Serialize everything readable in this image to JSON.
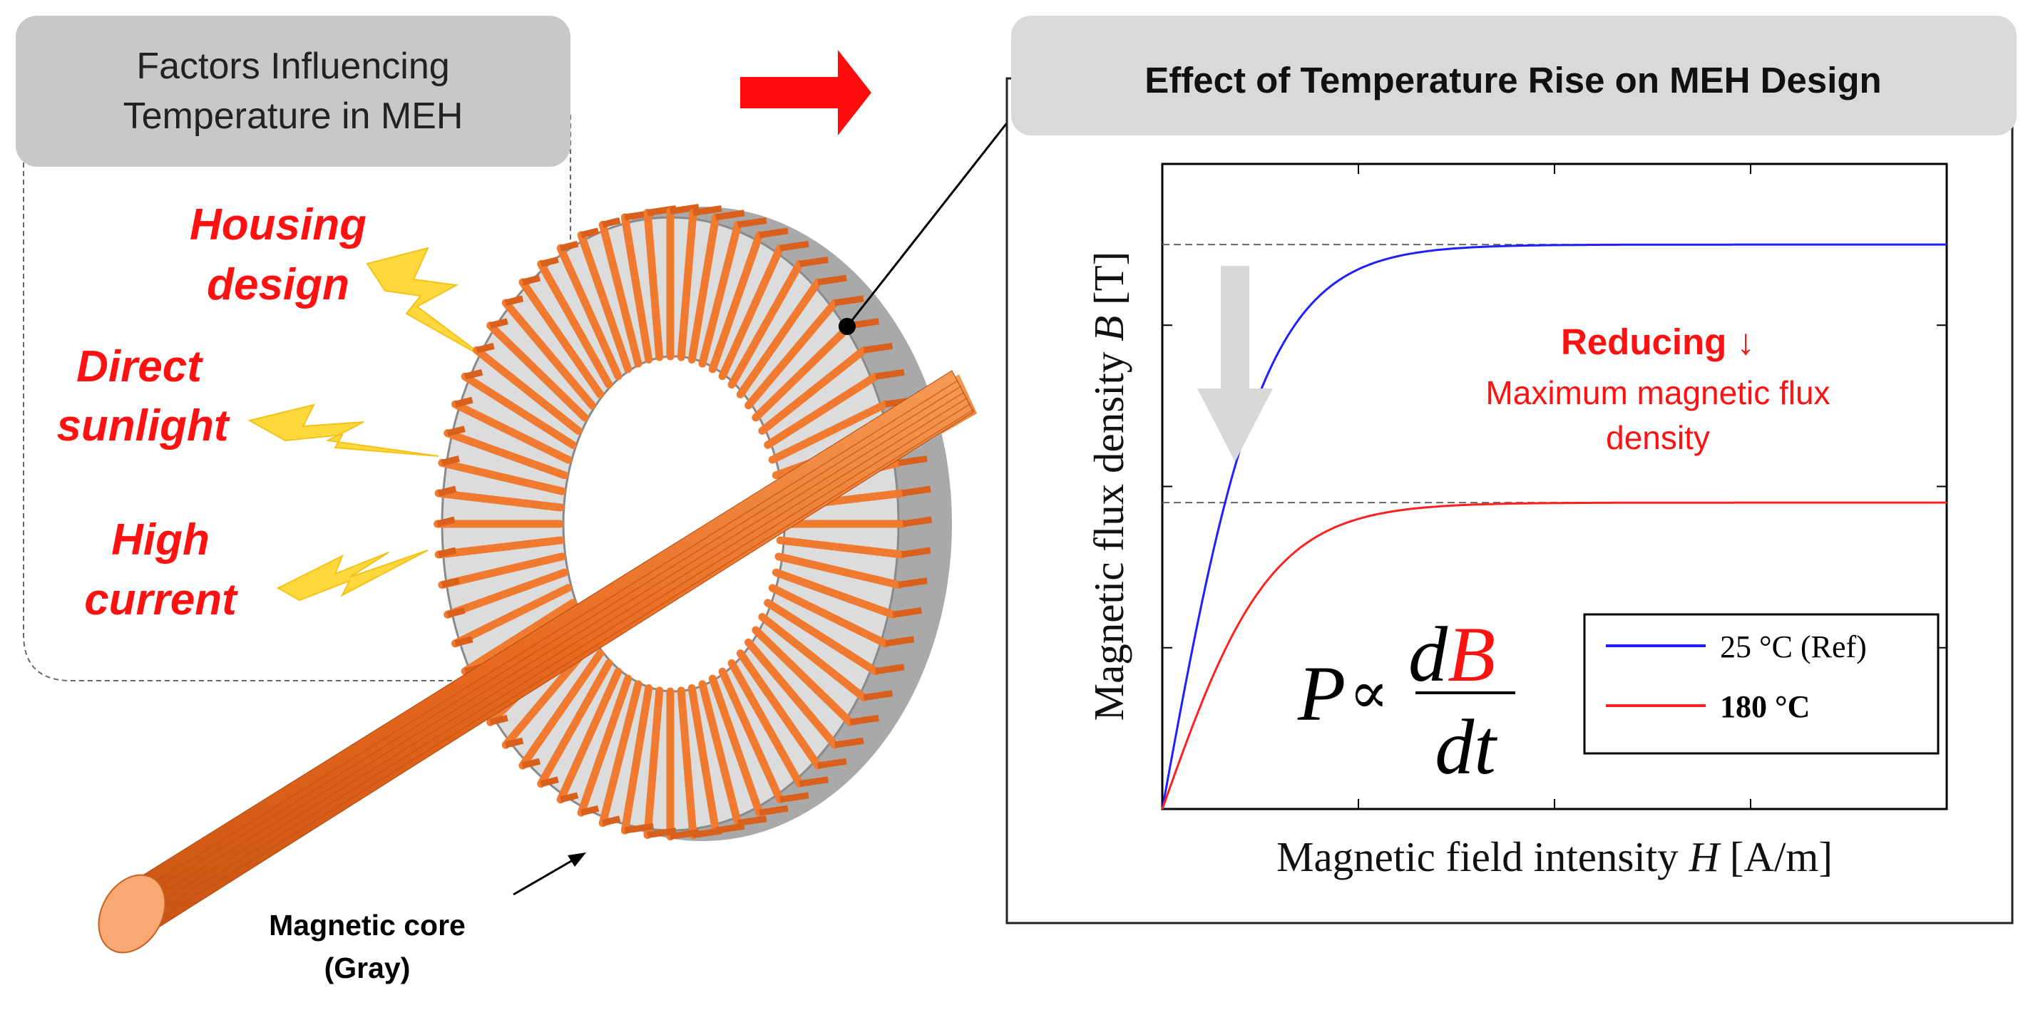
{
  "left_panel": {
    "title_line1": "Factors Influencing",
    "title_line2": "Temperature in MEH",
    "factors": [
      {
        "line1": "Housing",
        "line2": "design"
      },
      {
        "line1": "Direct",
        "line2": "sunlight"
      },
      {
        "line1": "High",
        "line2": "current"
      }
    ],
    "bolt_icon": "lightning-bolt-icon",
    "core_label_line1": "Magnetic core",
    "core_label_line2": "(Gray)"
  },
  "arrow_icon": "right-arrow-icon",
  "right_panel": {
    "title": "Effect of Temperature Rise on MEH Design",
    "reduction_title": "Reducing ↓",
    "reduction_line1": "Maximum magnetic flux",
    "reduction_line2": "density",
    "formula": {
      "lhs": "P",
      "prop": "∝",
      "num_d": "d",
      "num_B": "B",
      "den": "dt"
    }
  },
  "colors": {
    "accent_red": "#ff1111",
    "series_ref": "#1f1fff",
    "series_hot": "#ff2020",
    "header_bg": "#d9d9d9",
    "copper": "#f07a30"
  },
  "chart_data": {
    "type": "line",
    "xlabel_prefix": "Magnetic field intensity ",
    "xlabel_var": "H",
    "xlabel_unit": " [A/m]",
    "ylabel_prefix": "Magnetic flux density ",
    "ylabel_var": "B",
    "ylabel_unit": " [T]",
    "xlim": [
      0,
      4
    ],
    "ylim": [
      0,
      4
    ],
    "grid": false,
    "legend_position": "bottom-right",
    "series": [
      {
        "name": "25 °C (Ref)",
        "color": "#1f1fff",
        "bold": false,
        "saturation": 3.5,
        "rate": 1.9
      },
      {
        "name": "180 °C",
        "color": "#ff2020",
        "bold": true,
        "saturation": 1.9,
        "rate": 1.8
      }
    ],
    "reference_levels": [
      3.5,
      1.9
    ]
  }
}
